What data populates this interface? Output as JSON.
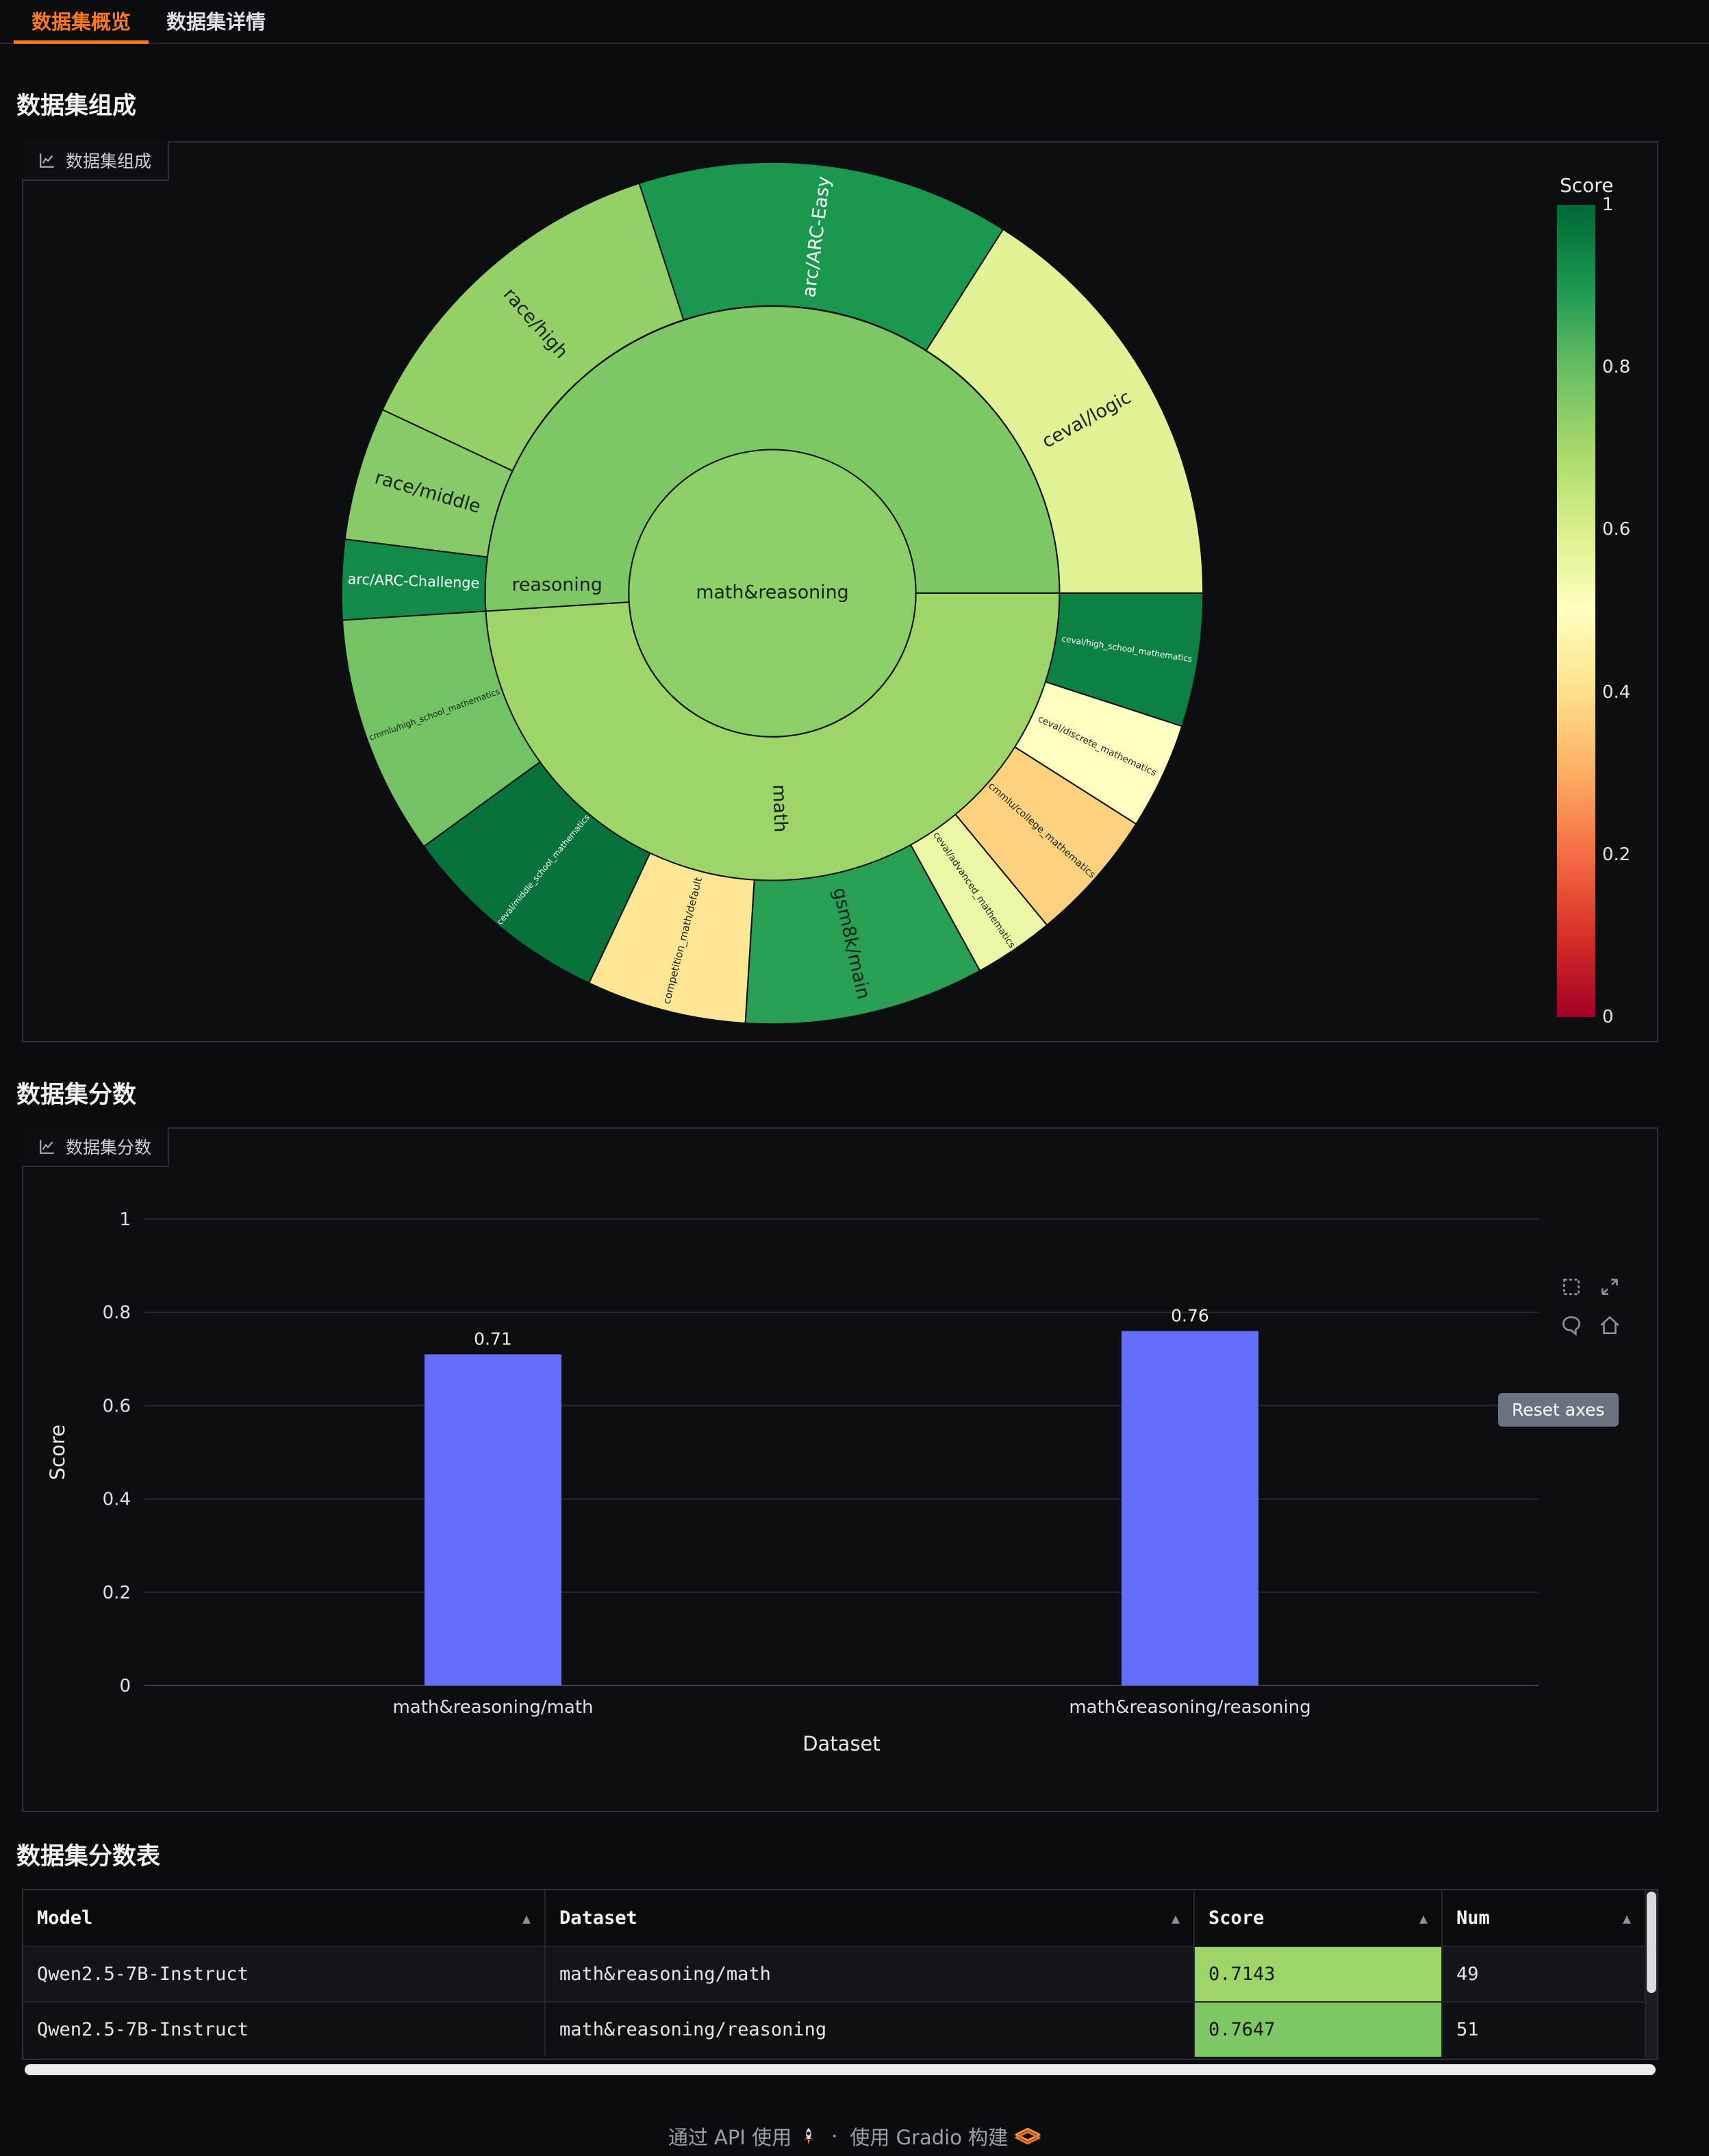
{
  "tabs": [
    {
      "label": "数据集概览",
      "active": true
    },
    {
      "label": "数据集详情",
      "active": false
    }
  ],
  "sections": {
    "composition": {
      "title": "数据集组成",
      "panel_label": "数据集组成"
    },
    "scores": {
      "title": "数据集分数",
      "panel_label": "数据集分数"
    },
    "score_table": {
      "title": "数据集分数表"
    }
  },
  "colorbar": {
    "title": "Score",
    "ticks": [
      "1",
      "0.8",
      "0.6",
      "0.4",
      "0.2",
      "0"
    ],
    "range": [
      0,
      1
    ]
  },
  "chart_data": [
    {
      "type": "sunburst",
      "colorscale": "RdYlGn",
      "colorbar_title": "Score",
      "colorbar_range": [
        0,
        1
      ],
      "root": {
        "label": "math&reasoning",
        "score": 0.74,
        "children": [
          {
            "label": "math",
            "score": 0.7143,
            "value": 49,
            "children": [
              {
                "label": "ceval/high_school_mathematics",
                "score": 0.95,
                "value": 5
              },
              {
                "label": "ceval/discrete_mathematics",
                "score": 0.5,
                "value": 4
              },
              {
                "label": "cmmlu/college_mathematics",
                "score": 0.37,
                "value": 5
              },
              {
                "label": "ceval/advanced_mathematics",
                "score": 0.55,
                "value": 3
              },
              {
                "label": "gsm8k/main",
                "score": 0.88,
                "value": 9
              },
              {
                "label": "competition_math/default",
                "score": 0.42,
                "value": 6
              },
              {
                "label": "ceval/middle_school_mathematics",
                "score": 0.98,
                "value": 8
              },
              {
                "label": "cmmlu/high_school_mathematics",
                "score": 0.78,
                "value": 9
              }
            ]
          },
          {
            "label": "reasoning",
            "score": 0.7647,
            "value": 51,
            "label_pos_deg": 182,
            "label_rot_deg": 0,
            "children": [
              {
                "label": "arc/ARC-Challenge",
                "score": 0.93,
                "value": 3
              },
              {
                "label": "race/middle",
                "score": 0.75,
                "value": 5
              },
              {
                "label": "race/high",
                "score": 0.73,
                "value": 13
              },
              {
                "label": "arc/ARC-Easy",
                "score": 0.9,
                "value": 14
              },
              {
                "label": "ceval/logic",
                "score": 0.58,
                "value": 16
              }
            ]
          }
        ]
      }
    },
    {
      "type": "bar",
      "categories": [
        "math&reasoning/math",
        "math&reasoning/reasoning"
      ],
      "values": [
        0.71,
        0.76
      ],
      "bar_labels": [
        "0.71",
        "0.76"
      ],
      "xlabel": "Dataset",
      "ylabel": "Score",
      "ylim": [
        0,
        1
      ],
      "yticks": [
        "0",
        "0.2",
        "0.4",
        "0.6",
        "0.8",
        "1"
      ],
      "bar_color": "#636efa",
      "grid": true,
      "legend": false
    }
  ],
  "modebar": {
    "reset_tooltip": "Reset axes"
  },
  "table": {
    "headers": [
      "Model",
      "Dataset",
      "Score",
      "Num"
    ],
    "sort_icon": "▲",
    "rows": [
      {
        "Model": "Qwen2.5-7B-Instruct",
        "Dataset": "math&reasoning/math",
        "Score": "0.7143",
        "Num": "49",
        "score_value": 0.7143
      },
      {
        "Model": "Qwen2.5-7B-Instruct",
        "Dataset": "math&reasoning/reasoning",
        "Score": "0.7647",
        "Num": "51",
        "score_value": 0.7647
      }
    ]
  },
  "footer": {
    "api_label": "通过 API 使用",
    "separator": "·",
    "gradio_label": "使用 Gradio 构建"
  }
}
